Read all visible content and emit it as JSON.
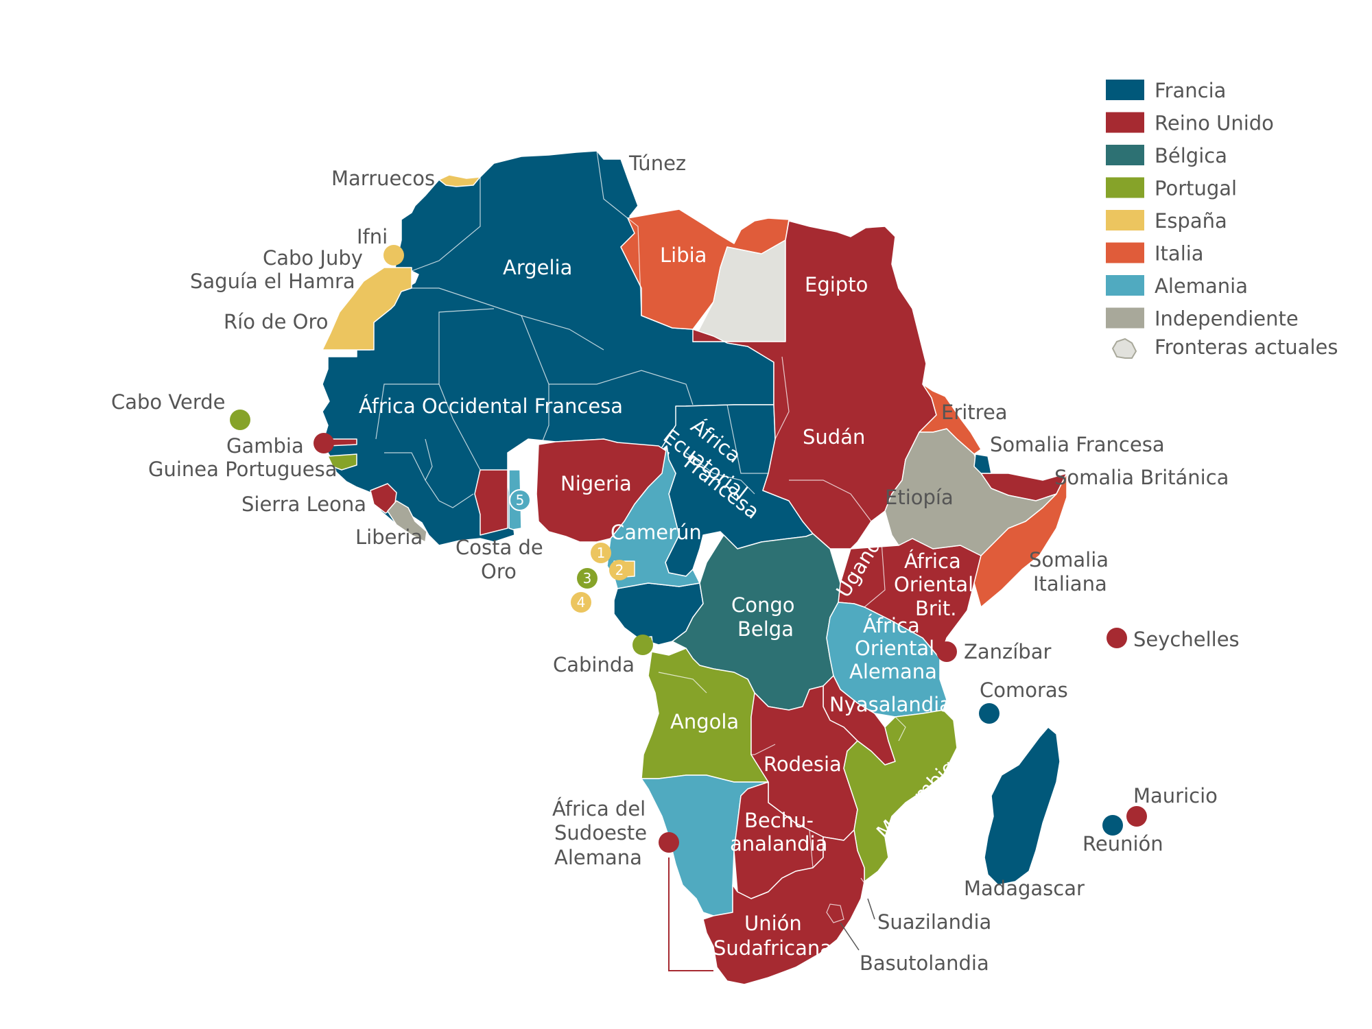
{
  "legend": [
    {
      "label": "Francia",
      "color": "#01587a"
    },
    {
      "label": "Reino Unido",
      "color": "#a62a31"
    },
    {
      "label": "Bélgica",
      "color": "#2d7173"
    },
    {
      "label": "Portugal",
      "color": "#86a329"
    },
    {
      "label": "España",
      "color": "#ecc55f"
    },
    {
      "label": "Italia",
      "color": "#e05c3a"
    },
    {
      "label": "Alemania",
      "color": "#50aac0"
    },
    {
      "label": "Independiente",
      "color": "#a8a89a"
    }
  ],
  "legend_borders": {
    "label": "Fronteras actuales",
    "icon": "map-outline-icon"
  },
  "labels": {
    "marruecos": "Marruecos",
    "tunez": "Túnez",
    "ifni": "Ifni",
    "cabo_juby": "Cabo Juby",
    "saguia": "Saguía el Hamra",
    "rio_de_oro": "Río de Oro",
    "argelia": "Argelia",
    "libia": "Libia",
    "egipto": "Egipto",
    "aof": "África Occidental Francesa",
    "cabo_verde": "Cabo Verde",
    "gambia": "Gambia",
    "guinea_port": "Guinea Portuguesa",
    "sierra_leona": "Sierra Leona",
    "liberia": "Liberia",
    "costa_de_oro_1": "Costa de",
    "costa_de_oro_2": "Oro",
    "nigeria": "Nigeria",
    "camerun": "Camerún",
    "aef_1": "África",
    "aef_2": "Ecuatorial",
    "aef_3": "Francesa",
    "sudan": "Sudán",
    "eritrea": "Eritrea",
    "somalia_francesa": "Somalia Francesa",
    "somalia_britanica": "Somalia Británica",
    "etiopia": "Etiopía",
    "somalia_italiana_1": "Somalia",
    "somalia_italiana_2": "Italiana",
    "uganda": "Uganda",
    "aob_1": "África",
    "aob_2": "Oriental",
    "aob_3": "Brit.",
    "congo_1": "Congo",
    "congo_2": "Belga",
    "aoa_1": "África",
    "aoa_2": "Oriental",
    "aoa_3": "Alemana",
    "zanzibar": "Zanzíbar",
    "seychelles": "Seychelles",
    "comoras": "Comoras",
    "cabinda": "Cabinda",
    "angola": "Angola",
    "nyasalandia": "Nyasalandia",
    "rodesia": "Rodesia",
    "mozambique": "Mozambique",
    "asa_1": "África del",
    "asa_2": "Sudoeste",
    "asa_3": "Alemana",
    "bechu_1": "Bechu-",
    "bechu_2": "analandia",
    "madagascar": "Madagascar",
    "mauricio": "Mauricio",
    "reunion": "Reunión",
    "union_1": "Unión",
    "union_2": "Sudafricana",
    "suazilandia": "Suazilandia",
    "basutolandia": "Basutolandia"
  },
  "numbers": [
    "1",
    "2",
    "3",
    "4",
    "5"
  ]
}
